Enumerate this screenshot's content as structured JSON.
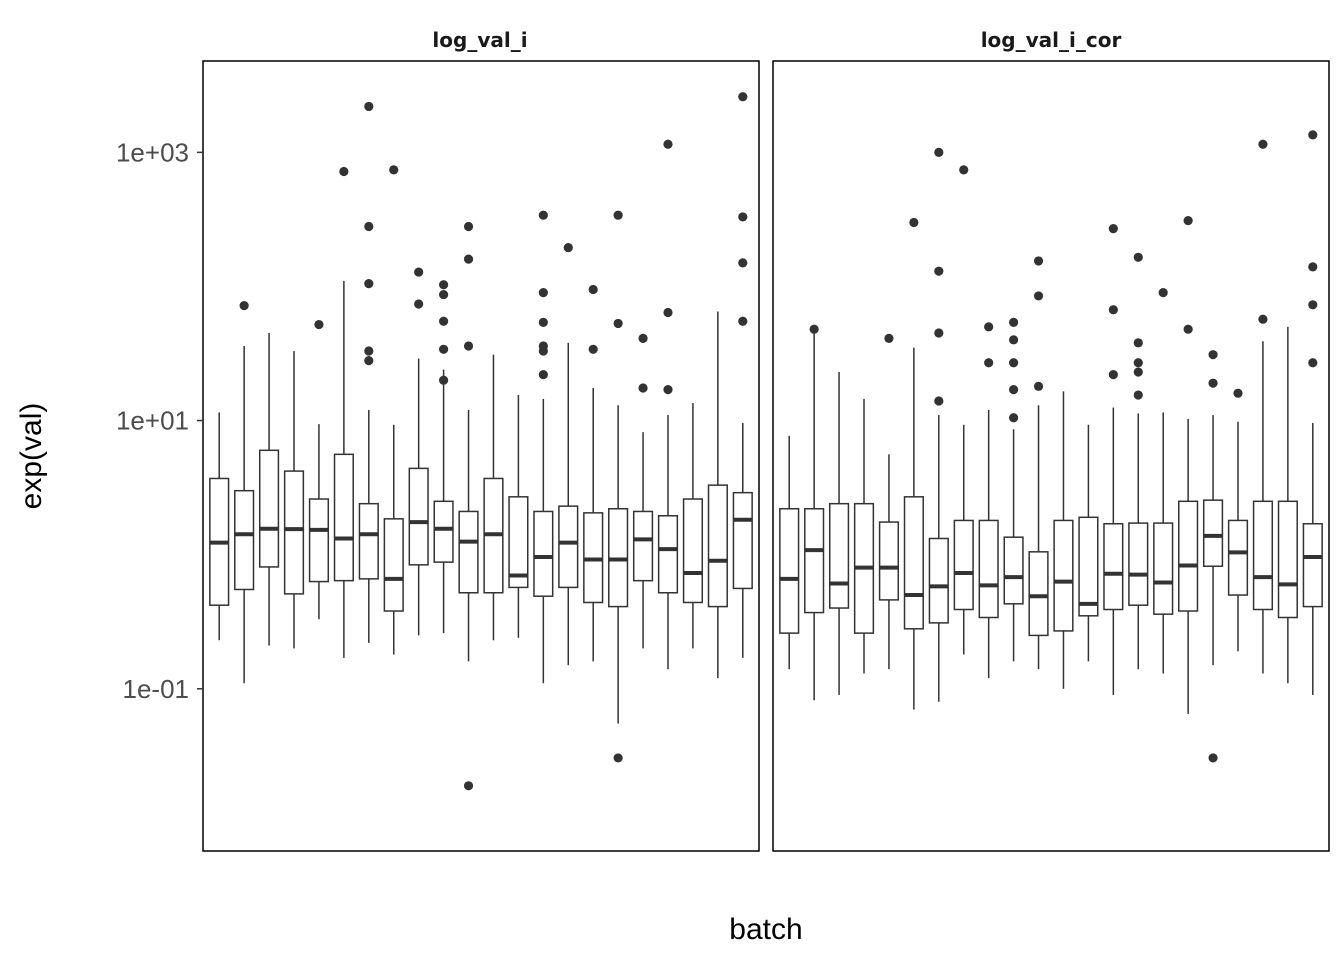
{
  "chart_data": {
    "type": "boxplot",
    "xlabel": "batch",
    "ylabel": "exp(val)",
    "y_scale": "log10",
    "ylim": [
      0.00617,
      4800
    ],
    "y_ticks": [
      {
        "value": 0.1,
        "label": "1e-01"
      },
      {
        "value": 10,
        "label": "1e+01"
      },
      {
        "value": 1000,
        "label": "1e+03"
      }
    ],
    "grid": false,
    "legend": "none",
    "colors": {
      "box_stroke": "#333333",
      "median": "#333333",
      "outlier": "#333333",
      "panel_border": "#000000"
    },
    "panels": [
      {
        "name": "log_val_i",
        "boxes": [
          {
            "lo": 0.23,
            "q1": 0.42,
            "med": 1.23,
            "q3": 3.7,
            "hi": 11.5,
            "outliers": []
          },
          {
            "lo": 0.11,
            "q1": 0.55,
            "med": 1.42,
            "q3": 3.0,
            "hi": 36,
            "outliers": [
              72
            ]
          },
          {
            "lo": 0.21,
            "q1": 0.81,
            "med": 1.56,
            "q3": 6.0,
            "hi": 45,
            "outliers": []
          },
          {
            "lo": 0.2,
            "q1": 0.51,
            "med": 1.55,
            "q3": 4.2,
            "hi": 33,
            "outliers": []
          },
          {
            "lo": 0.33,
            "q1": 0.63,
            "med": 1.53,
            "q3": 2.6,
            "hi": 9.4,
            "outliers": [
              52
            ]
          },
          {
            "lo": 0.17,
            "q1": 0.64,
            "med": 1.32,
            "q3": 5.6,
            "hi": 110,
            "outliers": [
              720
            ]
          },
          {
            "lo": 0.22,
            "q1": 0.66,
            "med": 1.42,
            "q3": 2.4,
            "hi": 12,
            "outliers": [
              2200,
              280,
              105,
              33,
              28
            ]
          },
          {
            "lo": 0.18,
            "q1": 0.38,
            "med": 0.66,
            "q3": 1.85,
            "hi": 9.3,
            "outliers": [
              740
            ]
          },
          {
            "lo": 0.25,
            "q1": 0.84,
            "med": 1.75,
            "q3": 4.4,
            "hi": 29,
            "outliers": [
              128,
              74
            ]
          },
          {
            "lo": 0.26,
            "q1": 0.88,
            "med": 1.56,
            "q3": 2.5,
            "hi": 24,
            "outliers": [
              103,
              87,
              55,
              34,
              20
            ]
          },
          {
            "lo": 0.16,
            "q1": 0.52,
            "med": 1.25,
            "q3": 2.1,
            "hi": 12,
            "outliers": [
              280,
              160,
              36,
              0.0189
            ]
          },
          {
            "lo": 0.23,
            "q1": 0.52,
            "med": 1.42,
            "q3": 3.7,
            "hi": 31,
            "outliers": []
          },
          {
            "lo": 0.24,
            "q1": 0.57,
            "med": 0.7,
            "q3": 2.7,
            "hi": 15.5,
            "outliers": []
          },
          {
            "lo": 0.11,
            "q1": 0.49,
            "med": 0.96,
            "q3": 2.1,
            "hi": 14.5,
            "outliers": [
              340,
              90,
              54,
              36,
              33,
              22
            ]
          },
          {
            "lo": 0.15,
            "q1": 0.57,
            "med": 1.23,
            "q3": 2.3,
            "hi": 38,
            "outliers": [
              195
            ]
          },
          {
            "lo": 0.16,
            "q1": 0.44,
            "med": 0.92,
            "q3": 2.05,
            "hi": 17.5,
            "outliers": [
              95,
              34
            ]
          },
          {
            "lo": 0.055,
            "q1": 0.41,
            "med": 0.92,
            "q3": 2.2,
            "hi": 13,
            "outliers": [
              340,
              53,
              0.0305
            ]
          },
          {
            "lo": 0.2,
            "q1": 0.64,
            "med": 1.3,
            "q3": 2.1,
            "hi": 8.2,
            "outliers": [
              41,
              17.5
            ]
          },
          {
            "lo": 0.14,
            "q1": 0.52,
            "med": 1.1,
            "q3": 1.95,
            "hi": 11,
            "outliers": [
              1150,
              64,
              17
            ]
          },
          {
            "lo": 0.2,
            "q1": 0.44,
            "med": 0.73,
            "q3": 2.6,
            "hi": 13.5,
            "outliers": []
          },
          {
            "lo": 0.12,
            "q1": 0.41,
            "med": 0.9,
            "q3": 3.3,
            "hi": 65,
            "outliers": []
          },
          {
            "lo": 0.17,
            "q1": 0.56,
            "med": 1.82,
            "q3": 2.9,
            "hi": 9.6,
            "outliers": [
              2600,
              330,
              150,
              55
            ]
          }
        ]
      },
      {
        "name": "log_val_i_cor",
        "boxes": [
          {
            "lo": 0.14,
            "q1": 0.26,
            "med": 0.66,
            "q3": 2.2,
            "hi": 7.7,
            "outliers": []
          },
          {
            "lo": 0.082,
            "q1": 0.37,
            "med": 1.08,
            "q3": 2.2,
            "hi": 48,
            "outliers": [
              48
            ]
          },
          {
            "lo": 0.09,
            "q1": 0.4,
            "med": 0.61,
            "q3": 2.4,
            "hi": 23,
            "outliers": []
          },
          {
            "lo": 0.13,
            "q1": 0.26,
            "med": 0.8,
            "q3": 2.4,
            "hi": 14.5,
            "outliers": []
          },
          {
            "lo": 0.14,
            "q1": 0.46,
            "med": 0.8,
            "q3": 1.75,
            "hi": 5.6,
            "outliers": [
              41
            ]
          },
          {
            "lo": 0.07,
            "q1": 0.28,
            "med": 0.5,
            "q3": 2.7,
            "hi": 35,
            "outliers": [
              300
            ]
          },
          {
            "lo": 0.08,
            "q1": 0.31,
            "med": 0.58,
            "q3": 1.32,
            "hi": 11,
            "outliers": [
              1000,
              130,
              45,
              14
            ]
          },
          {
            "lo": 0.18,
            "q1": 0.39,
            "med": 0.73,
            "q3": 1.8,
            "hi": 9.3,
            "outliers": [
              740
            ]
          },
          {
            "lo": 0.12,
            "q1": 0.34,
            "med": 0.59,
            "q3": 1.8,
            "hi": 12,
            "outliers": [
              50,
              27
            ]
          },
          {
            "lo": 0.16,
            "q1": 0.43,
            "med": 0.68,
            "q3": 1.35,
            "hi": 8.6,
            "outliers": [
              54,
              40,
              27,
              17,
              10.5
            ]
          },
          {
            "lo": 0.14,
            "q1": 0.25,
            "med": 0.49,
            "q3": 1.05,
            "hi": 13,
            "outliers": [
              155,
              85,
              18
            ]
          },
          {
            "lo": 0.1,
            "q1": 0.27,
            "med": 0.63,
            "q3": 1.8,
            "hi": 16.5,
            "outliers": []
          },
          {
            "lo": 0.16,
            "q1": 0.35,
            "med": 0.43,
            "q3": 1.9,
            "hi": 9.3,
            "outliers": []
          },
          {
            "lo": 0.09,
            "q1": 0.39,
            "med": 0.72,
            "q3": 1.7,
            "hi": 12.5,
            "outliers": [
              270,
              67,
              22
            ]
          },
          {
            "lo": 0.14,
            "q1": 0.42,
            "med": 0.71,
            "q3": 1.72,
            "hi": 11.3,
            "outliers": [
              165,
              38,
              27,
              23,
              15.5
            ]
          },
          {
            "lo": 0.13,
            "q1": 0.36,
            "med": 0.62,
            "q3": 1.72,
            "hi": 11.5,
            "outliers": [
              90
            ]
          },
          {
            "lo": 0.065,
            "q1": 0.38,
            "med": 0.83,
            "q3": 2.5,
            "hi": 10.3,
            "outliers": [
              310,
              48
            ]
          },
          {
            "lo": 0.15,
            "q1": 0.82,
            "med": 1.38,
            "q3": 2.55,
            "hi": 11,
            "outliers": [
              31,
              19,
              0.0305
            ]
          },
          {
            "lo": 0.19,
            "q1": 0.5,
            "med": 1.04,
            "q3": 1.8,
            "hi": 9.8,
            "outliers": [
              16
            ]
          },
          {
            "lo": 0.13,
            "q1": 0.39,
            "med": 0.68,
            "q3": 2.5,
            "hi": 39,
            "outliers": [
              1150,
              57
            ]
          },
          {
            "lo": 0.11,
            "q1": 0.34,
            "med": 0.6,
            "q3": 2.5,
            "hi": 50,
            "outliers": []
          },
          {
            "lo": 0.09,
            "q1": 0.41,
            "med": 0.96,
            "q3": 1.7,
            "hi": 9.6,
            "outliers": [
              1350,
              140,
              73,
              27
            ]
          }
        ]
      }
    ]
  }
}
